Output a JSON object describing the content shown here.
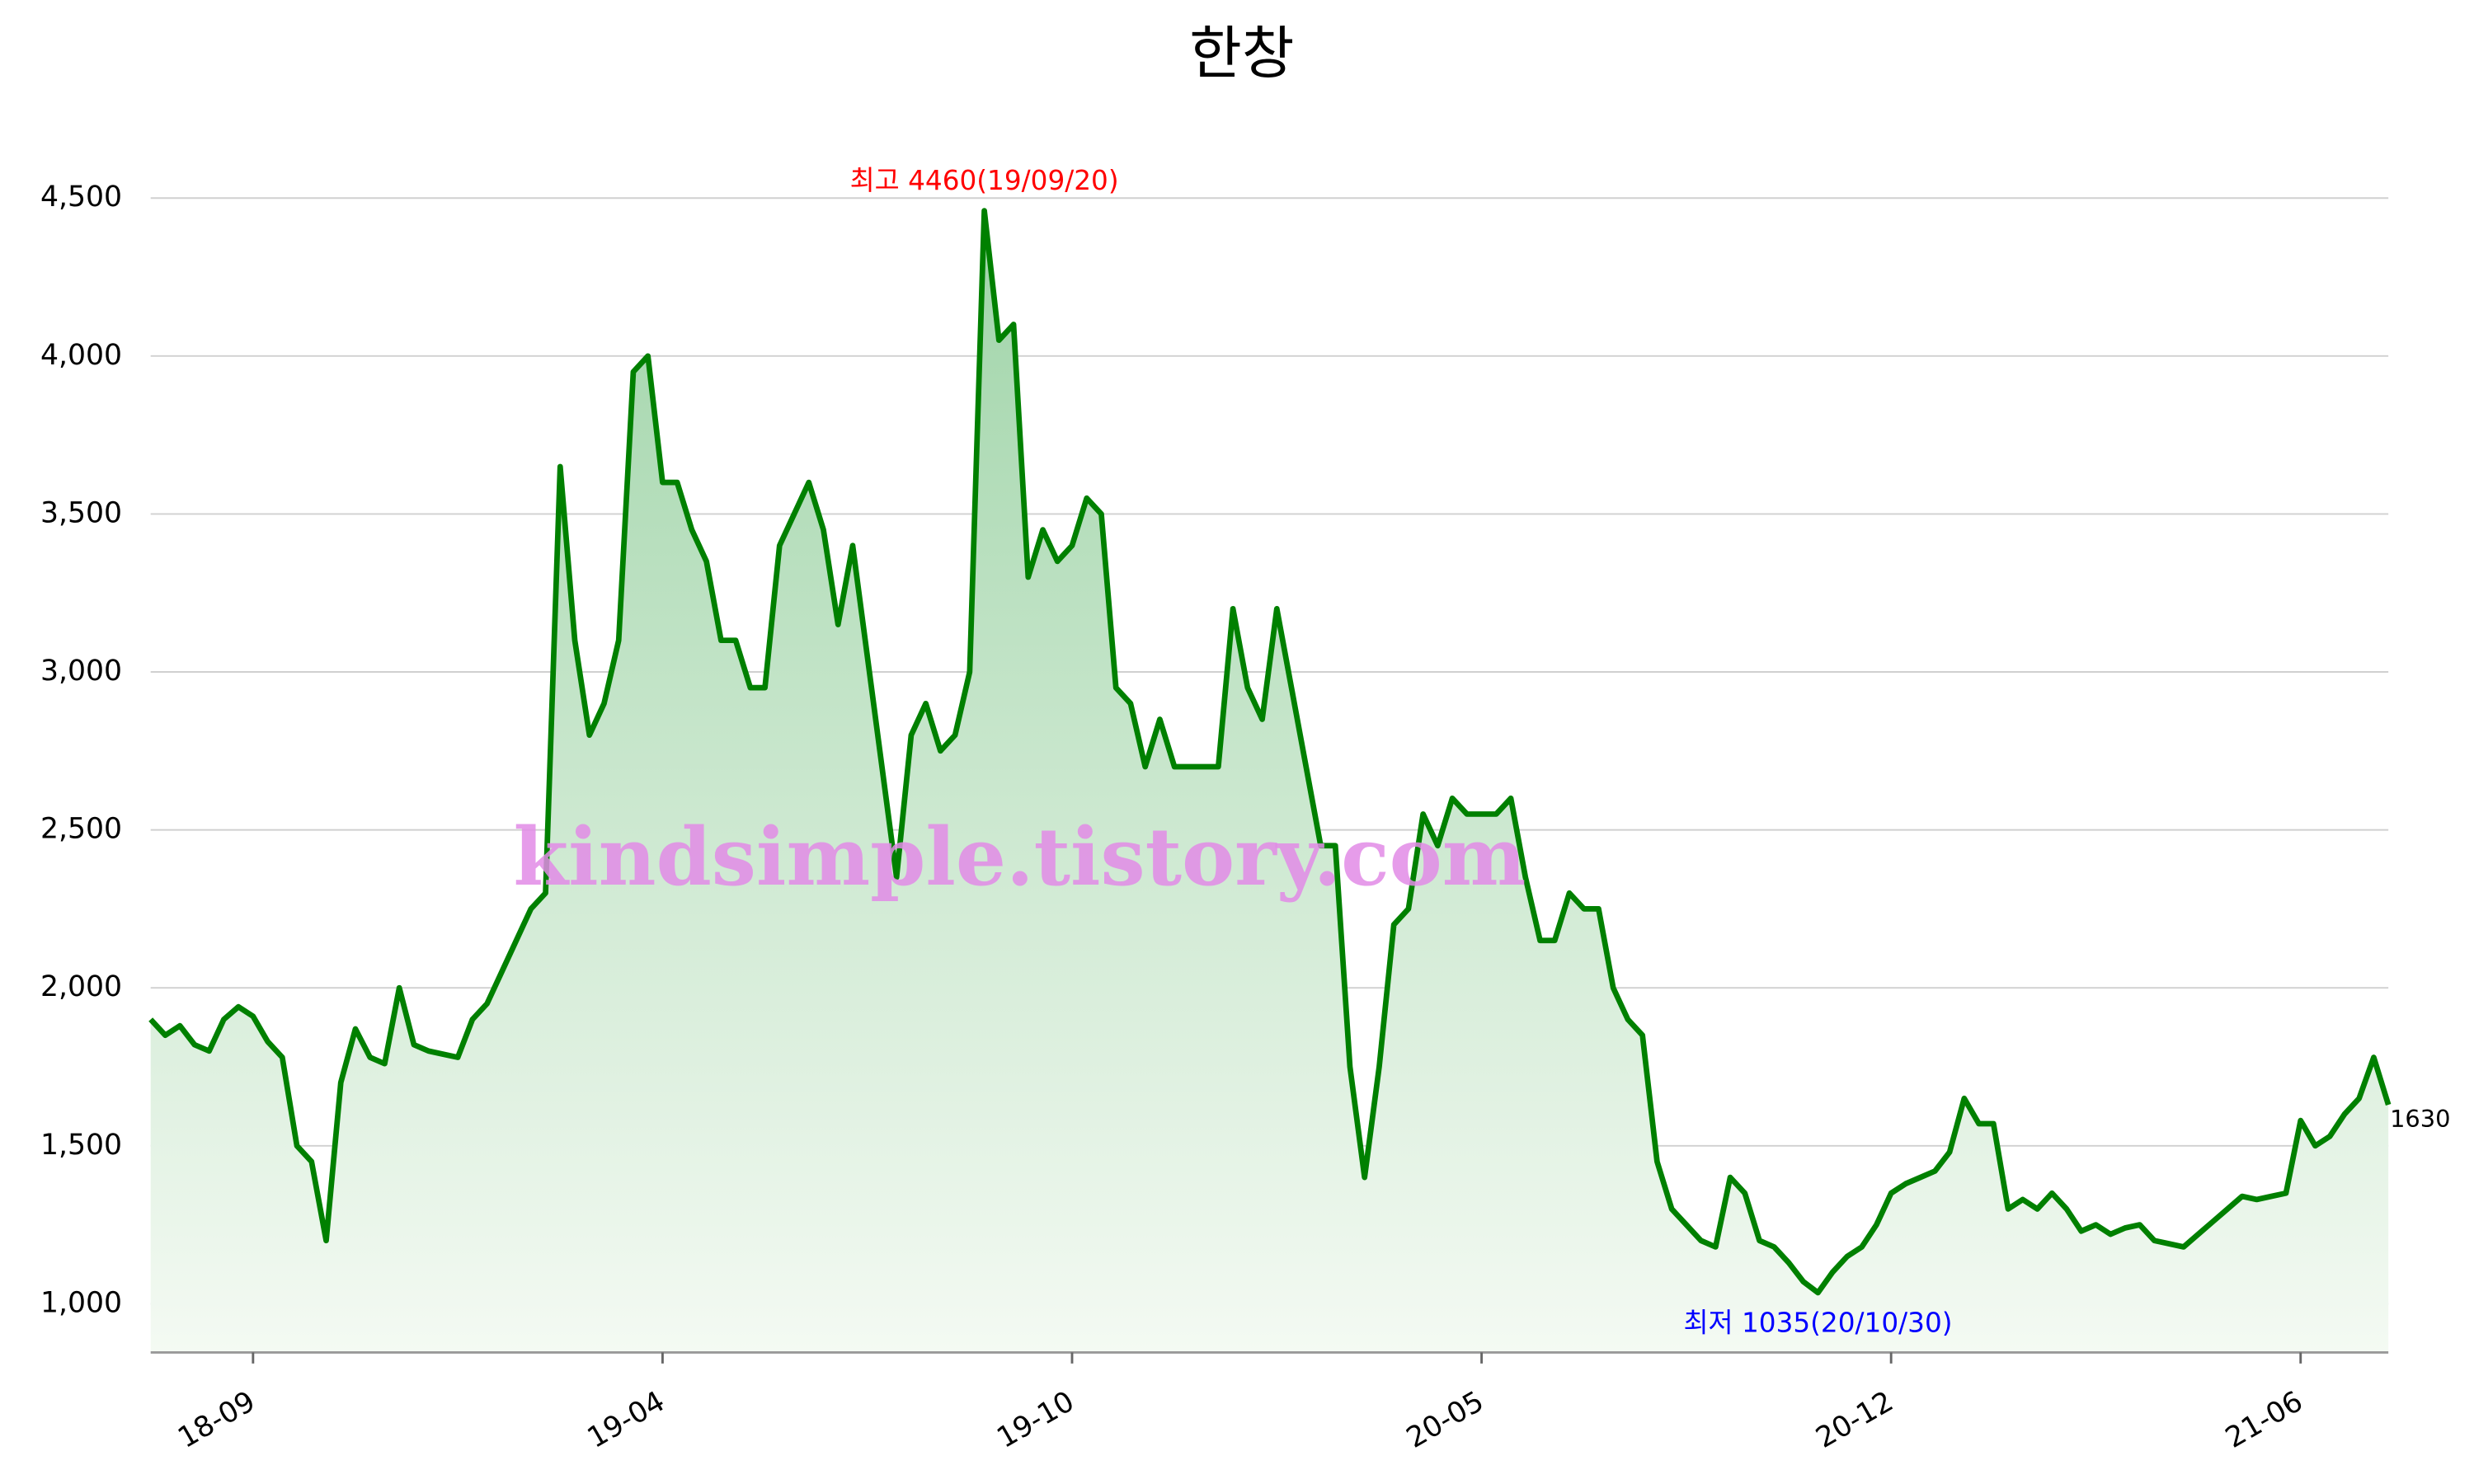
{
  "chart_data": {
    "type": "line",
    "title": "한창",
    "watermark": "kindsimple.tistory.com",
    "categories": [
      null,
      null,
      null,
      null,
      null,
      null,
      null,
      "18-09",
      null,
      null,
      null,
      null,
      null,
      null,
      null,
      null,
      null,
      null,
      null,
      null,
      null,
      null,
      null,
      null,
      null,
      null,
      null,
      null,
      null,
      null,
      null,
      null,
      null,
      null,
      null,
      "19-04",
      null,
      null,
      null,
      null,
      null,
      null,
      null,
      null,
      null,
      null,
      null,
      null,
      null,
      null,
      null,
      null,
      null,
      null,
      null,
      null,
      null,
      null,
      null,
      null,
      null,
      null,
      null,
      "19-10",
      null,
      null,
      null,
      null,
      null,
      null,
      null,
      null,
      null,
      null,
      null,
      null,
      null,
      null,
      null,
      null,
      null,
      null,
      null,
      null,
      null,
      null,
      null,
      null,
      null,
      null,
      null,
      "20-05",
      null,
      null,
      null,
      null,
      null,
      null,
      null,
      null,
      null,
      null,
      null,
      null,
      null,
      null,
      null,
      null,
      null,
      null,
      null,
      null,
      null,
      null,
      null,
      null,
      null,
      null,
      null,
      "20-12",
      null,
      null,
      null,
      null,
      null,
      null,
      null,
      null,
      null,
      null,
      null,
      null,
      null,
      null,
      null,
      null,
      null,
      null,
      null,
      null,
      null,
      null,
      null,
      null,
      null,
      null,
      null,
      "21-06",
      null,
      null,
      null,
      null,
      null,
      null
    ],
    "series": [
      {
        "color": "#008000",
        "area_top": "#9fd4a8",
        "area_bottom": "#f4faf3",
        "values": [
          1900,
          1850,
          1880,
          1820,
          1800,
          1900,
          1940,
          1910,
          1830,
          1780,
          1500,
          1450,
          1200,
          1700,
          1870,
          1780,
          1760,
          2000,
          1820,
          1800,
          1790,
          1780,
          1900,
          1950,
          2050,
          2150,
          2250,
          2300,
          3650,
          3100,
          2800,
          2900,
          3100,
          3950,
          4000,
          3600,
          3600,
          3450,
          3350,
          3100,
          3100,
          2950,
          2950,
          3400,
          3500,
          3600,
          3450,
          3150,
          3400,
          3050,
          2700,
          2350,
          2800,
          2900,
          2750,
          2800,
          3000,
          4460,
          4050,
          4100,
          3300,
          3450,
          3350,
          3400,
          3550,
          3500,
          2950,
          2900,
          2700,
          2850,
          2700,
          2700,
          2700,
          2700,
          3200,
          2950,
          2850,
          3200,
          2950,
          2700,
          2450,
          2450,
          1750,
          1400,
          1750,
          2200,
          2250,
          2550,
          2450,
          2600,
          2550,
          2550,
          2550,
          2600,
          2350,
          2150,
          2150,
          2300,
          2250,
          2250,
          2000,
          1900,
          1850,
          1450,
          1300,
          1250,
          1200,
          1180,
          1400,
          1350,
          1200,
          1180,
          1130,
          1070,
          1035,
          1100,
          1150,
          1180,
          1250,
          1350,
          1380,
          1400,
          1420,
          1480,
          1650,
          1570,
          1570,
          1300,
          1330,
          1300,
          1350,
          1300,
          1230,
          1250,
          1220,
          1240,
          1250,
          1200,
          1190,
          1180,
          1220,
          1260,
          1300,
          1340,
          1330,
          1340,
          1350,
          1580,
          1500,
          1530,
          1600,
          1650,
          1780,
          1630
        ]
      }
    ],
    "annotations": [
      {
        "text": "최고 4460(19/09/20)",
        "color": "#ff0000",
        "at": "max"
      },
      {
        "text": "최저 1035(20/10/30)",
        "color": "#0000ff",
        "at": "min"
      }
    ],
    "ylim": [
      846,
      4600
    ],
    "yticks": [
      {
        "value": 1000,
        "label": "1,000"
      },
      {
        "value": 1500,
        "label": "1,500"
      },
      {
        "value": 2000,
        "label": "2,000"
      },
      {
        "value": 2500,
        "label": "2,500"
      },
      {
        "value": 3000,
        "label": "3,000"
      },
      {
        "value": 3500,
        "label": "3,500"
      },
      {
        "value": 4000,
        "label": "4,000"
      },
      {
        "value": 4500,
        "label": "4,500"
      }
    ],
    "grid": true
  }
}
